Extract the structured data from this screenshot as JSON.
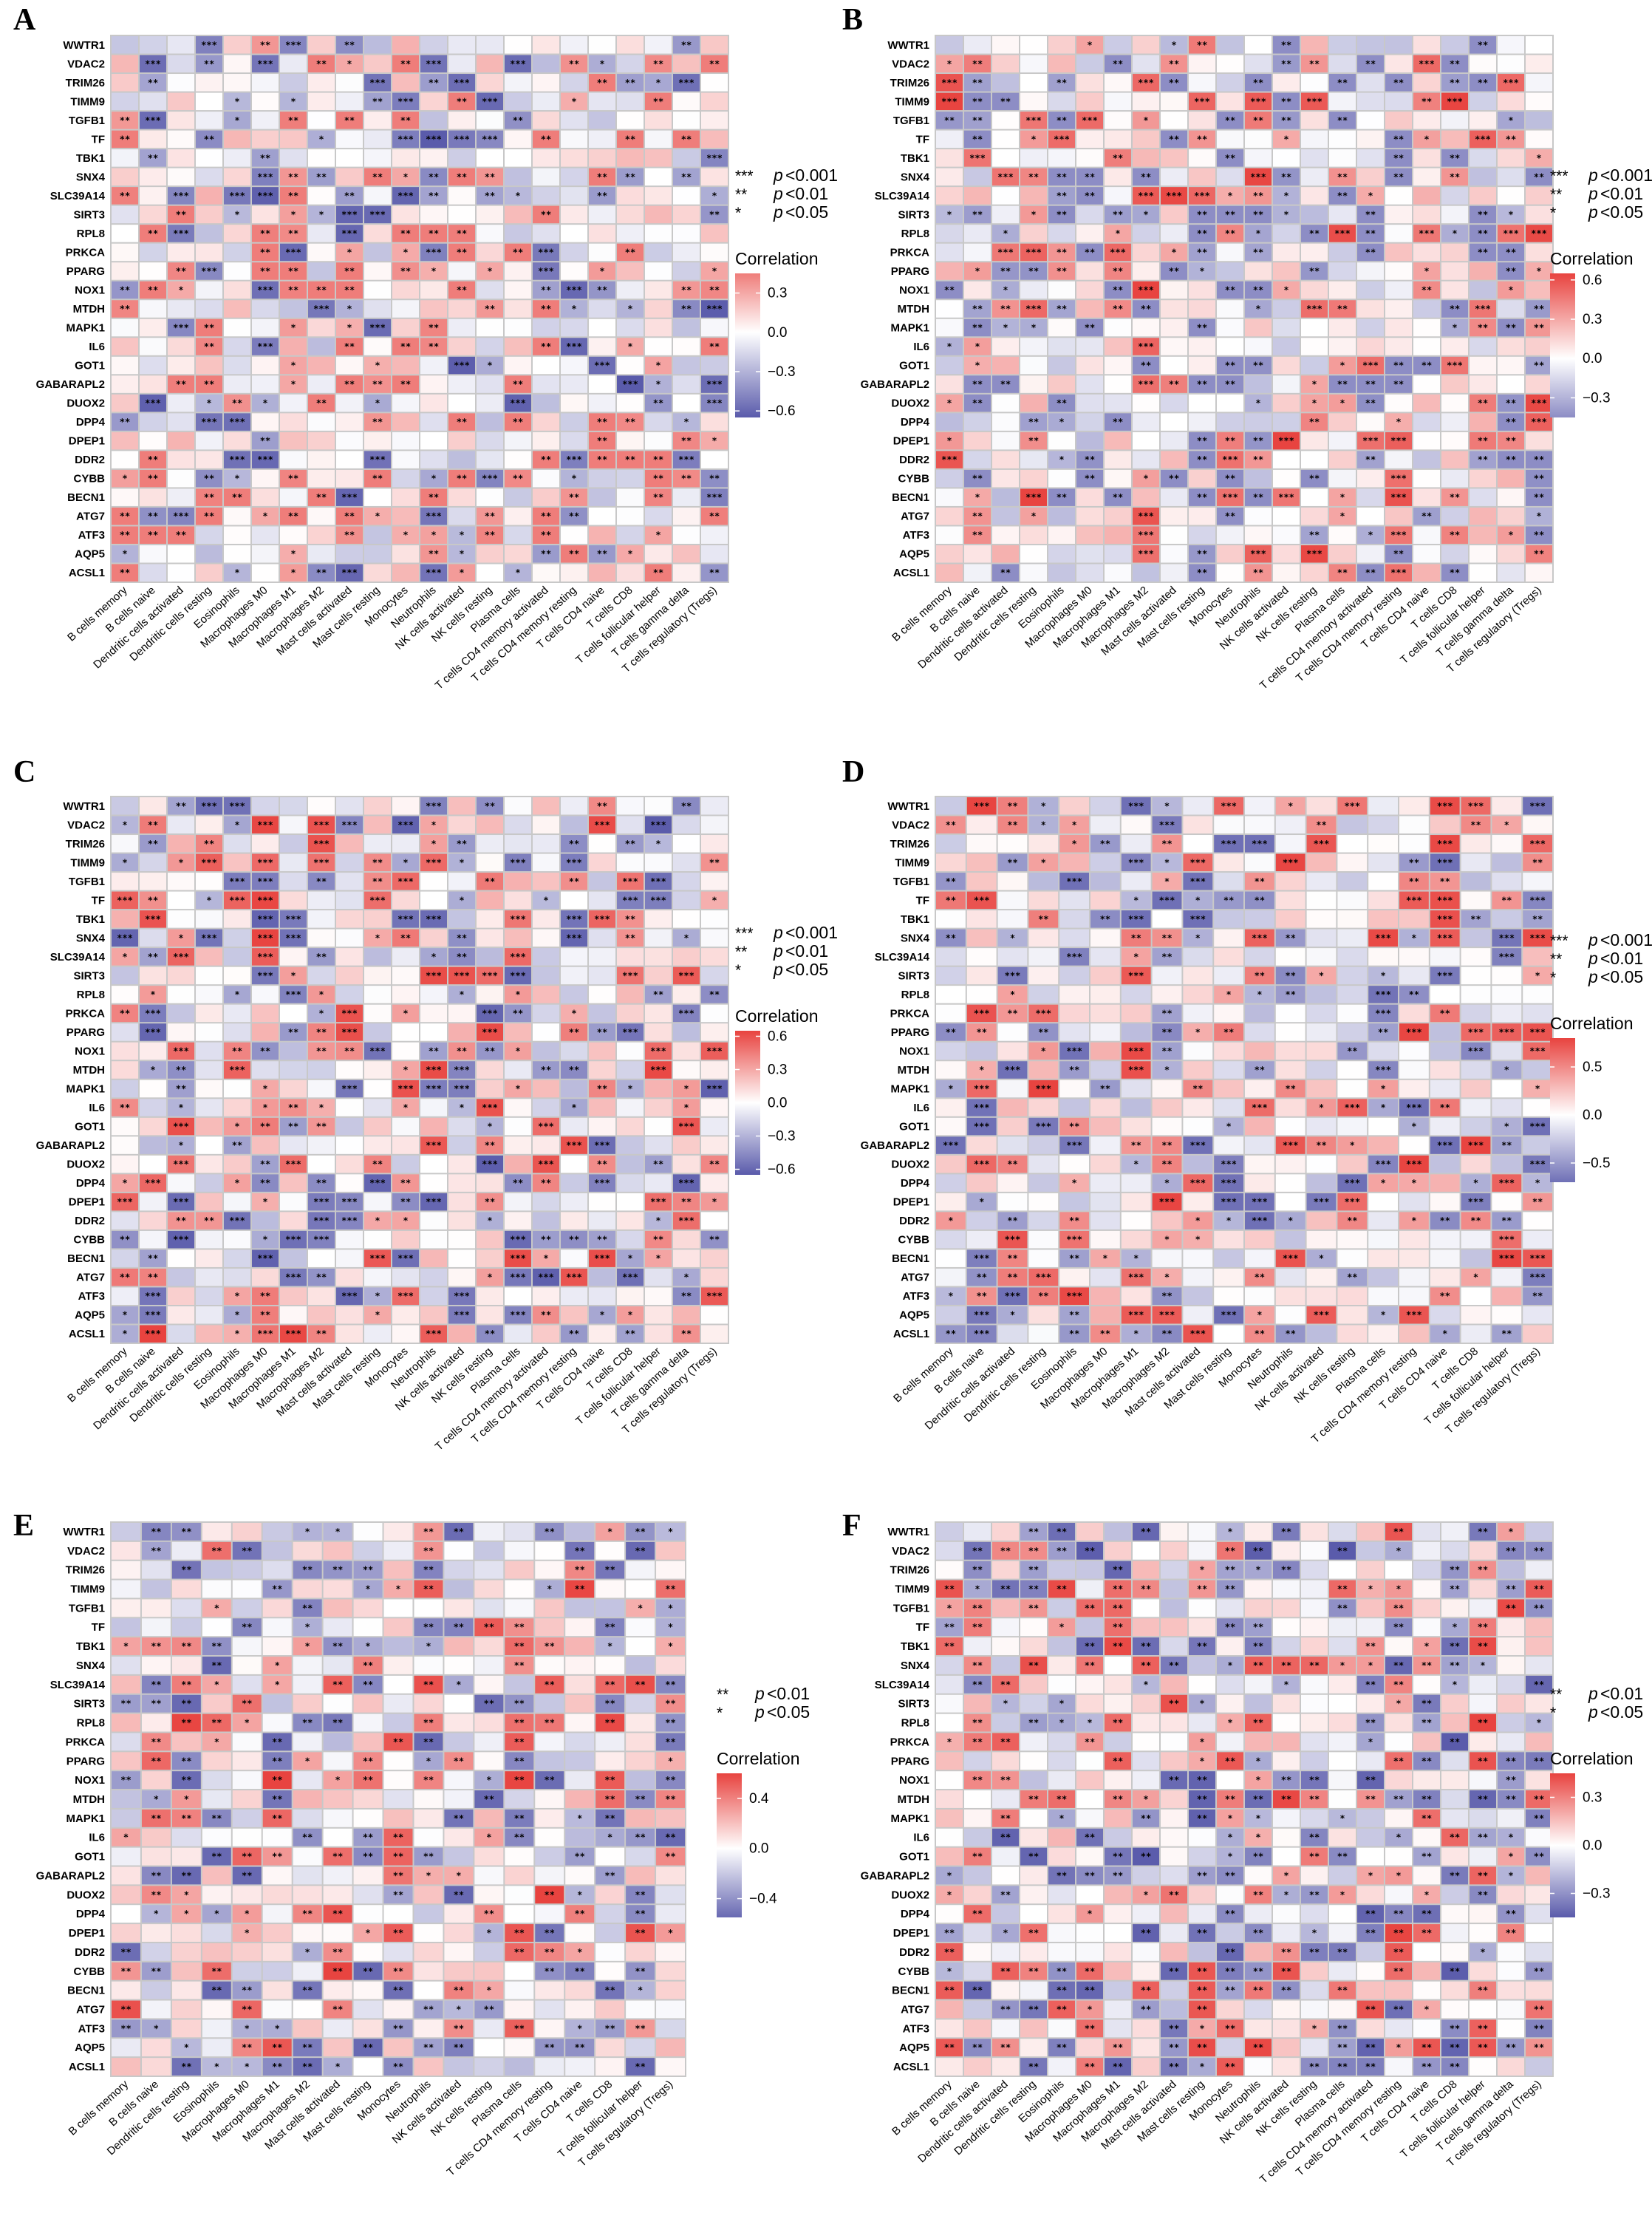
{
  "row_labels": [
    "WWTR1",
    "VDAC2",
    "TRIM26",
    "TIMM9",
    "TGFB1",
    "TF",
    "TBK1",
    "SNX4",
    "SLC39A14",
    "SIRT3",
    "RPL8",
    "PRKCA",
    "PPARG",
    "NOX1",
    "MTDH",
    "MAPK1",
    "IL6",
    "GOT1",
    "GABARAPL2",
    "DUOX2",
    "DPP4",
    "DPEP1",
    "DDR2",
    "CYBB",
    "BECN1",
    "ATG7",
    "ATF3",
    "AQP5",
    "ACSL1"
  ],
  "col_labels_full": [
    "B cells memory",
    "B cells naive",
    "Dendritic cells activated",
    "Dendritic cells resting",
    "Eosinophils",
    "Macrophages M0",
    "Macrophages M1",
    "Macrophages M2",
    "Mast cells activated",
    "Mast cells resting",
    "Monocytes",
    "Neutrophils",
    "NK cells activated",
    "NK cells resting",
    "Plasma cells",
    "T cells CD4 memory activated",
    "T cells CD4 memory resting",
    "T cells CD4 naive",
    "T cells CD8",
    "T cells follicular helper",
    "T cells gamma delta",
    "T cells regulatory (Tregs)"
  ],
  "legend_title": "Correlation",
  "sig_legend": {
    "three": {
      "stars": "***",
      "p": "p",
      "text": "<0.001"
    },
    "two": {
      "stars": "**",
      "p": "p",
      "text": "<0.01"
    },
    "one": {
      "stars": "*",
      "p": "p",
      "text": "<0.05"
    }
  },
  "colors": {
    "positive": "#e8433f",
    "zero": "#ffffff",
    "negative": "#5a5bab",
    "grid": "#c8c8c8"
  },
  "chart_data": [
    {
      "type": "heatmap",
      "panel": "A",
      "columns": "col_labels_full",
      "sig_levels": [
        "***",
        "**",
        "*"
      ],
      "colorbar_ticks": [
        0.3,
        0.0,
        -0.3,
        -0.6
      ],
      "colorbar_labels": [
        "0.3",
        "0.0",
        "−0.3",
        "−0.6"
      ],
      "range": [
        -0.65,
        0.45
      ],
      "seed": 11
    },
    {
      "type": "heatmap",
      "panel": "B",
      "columns": "col_labels_full",
      "sig_levels": [
        "***",
        "**",
        "*"
      ],
      "colorbar_ticks": [
        0.6,
        0.3,
        0.0,
        -0.3
      ],
      "colorbar_labels": [
        "0.6",
        "0.3",
        "0.0",
        "−0.3"
      ],
      "range": [
        -0.45,
        0.65
      ],
      "seed": 23
    },
    {
      "type": "heatmap",
      "panel": "C",
      "columns": "col_labels_full",
      "sig_levels": [
        "***",
        "**",
        "*"
      ],
      "colorbar_ticks": [
        0.6,
        0.3,
        0.0,
        -0.3,
        -0.6
      ],
      "colorbar_labels": [
        "0.6",
        "0.3",
        "0.0",
        "−0.3",
        "−0.6"
      ],
      "range": [
        -0.65,
        0.65
      ],
      "seed": 37
    },
    {
      "type": "heatmap",
      "panel": "D",
      "columns": "D",
      "sig_levels": [
        "***",
        "**",
        "*"
      ],
      "colorbar_ticks": [
        0.5,
        0.0,
        -0.5
      ],
      "colorbar_labels": [
        "0.5",
        "0.0",
        "−0.5"
      ],
      "range": [
        -0.7,
        0.8
      ],
      "seed": 41
    },
    {
      "type": "heatmap",
      "panel": "E",
      "columns": "E",
      "sig_levels": [
        "**",
        "*"
      ],
      "colorbar_ticks": [
        0.4,
        0.0,
        -0.4
      ],
      "colorbar_labels": [
        "0.4",
        "0.0",
        "−0.4"
      ],
      "range": [
        -0.55,
        0.6
      ],
      "seed": 53
    },
    {
      "type": "heatmap",
      "panel": "F",
      "columns": "col_labels_full",
      "sig_levels": [
        "**",
        "*"
      ],
      "colorbar_ticks": [
        0.3,
        0.0,
        -0.3
      ],
      "colorbar_labels": [
        "0.3",
        "0.0",
        "−0.3"
      ],
      "range": [
        -0.45,
        0.45
      ],
      "seed": 67
    }
  ],
  "panel_columns": {
    "D": [
      "B cells memory",
      "B cells naive",
      "Dendritic cells activated",
      "Dendritic cells resting",
      "Eosinophils",
      "Macrophages M0",
      "Macrophages M1",
      "Macrophages M2",
      "Mast cells activated",
      "Mast cells resting",
      "Monocytes",
      "Neutrophils",
      "NK cells activated",
      "NK cells resting",
      "Plasma cells",
      "T cells CD4 memory resting",
      "T cells CD4 naive",
      "T cells CD8",
      "T cells follicular helper",
      "T cells regulatory (Tregs)"
    ],
    "E": [
      "B cells memory",
      "B cells naive",
      "Dendritic cells resting",
      "Eosinophils",
      "Macrophages M0",
      "Macrophages M1",
      "Macrophages M2",
      "Mast cells activated",
      "Mast cells resting",
      "Monocytes",
      "Neutrophils",
      "NK cells activated",
      "NK cells resting",
      "Plasma cells",
      "T cells CD4 memory resting",
      "T cells CD4 naive",
      "T cells CD8",
      "T cells follicular helper",
      "T cells regulatory (Tregs)"
    ]
  }
}
